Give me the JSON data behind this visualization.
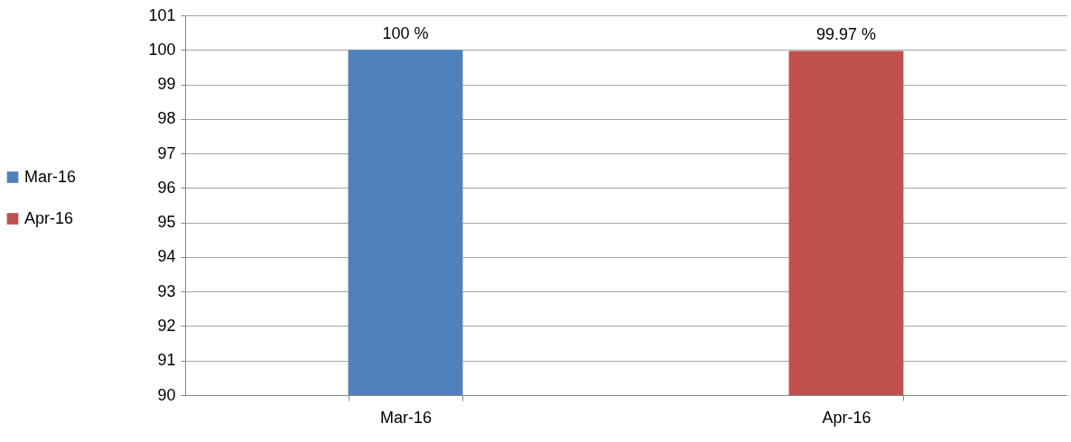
{
  "chart_data": {
    "type": "bar",
    "categories": [
      "Mar-16",
      "Apr-16"
    ],
    "series": [
      {
        "name": "Mar-16",
        "color": "#4f81bd",
        "values": [
          100,
          null
        ],
        "value_labels": [
          "100 %",
          null
        ]
      },
      {
        "name": "Apr-16",
        "color": "#c0504d",
        "values": [
          null,
          99.97
        ],
        "value_labels": [
          null,
          "99.97 %"
        ]
      }
    ],
    "ylim": [
      90,
      101
    ],
    "yticks": [
      90,
      91,
      92,
      93,
      94,
      95,
      96,
      97,
      98,
      99,
      100,
      101
    ],
    "grid": "y",
    "legend": "left"
  }
}
